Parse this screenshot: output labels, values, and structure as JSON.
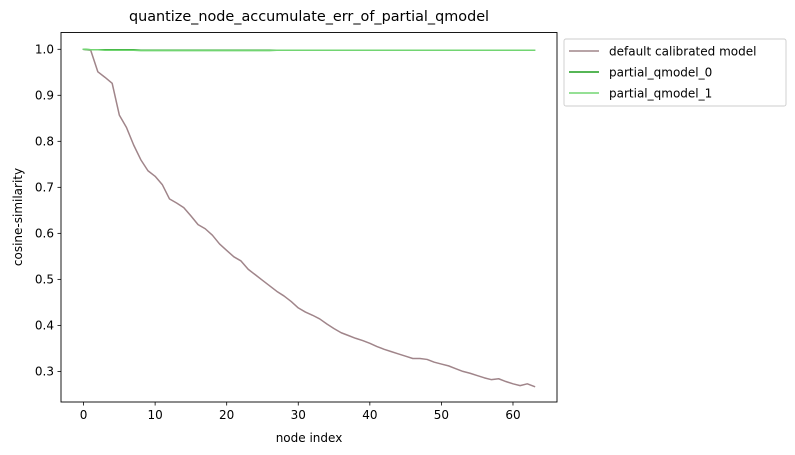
{
  "chart_data": {
    "type": "line",
    "title": "quantize_node_accumulate_err_of_partial_qmodel",
    "xlabel": "node index",
    "ylabel": "cosine-similarity",
    "xlim": [
      -3.15,
      66.15
    ],
    "ylim": [
      0.2335,
      1.0365
    ],
    "xticks": [
      0,
      10,
      20,
      30,
      40,
      50,
      60
    ],
    "xtick_labels": [
      "0",
      "10",
      "20",
      "30",
      "40",
      "50",
      "60"
    ],
    "yticks": [
      0.3,
      0.4,
      0.5,
      0.6,
      0.7,
      0.8,
      0.9,
      1.0
    ],
    "ytick_labels": [
      "0.3",
      "0.4",
      "0.5",
      "0.6",
      "0.7",
      "0.8",
      "0.9",
      "1.0"
    ],
    "grid": false,
    "legend_position": "outside upper right",
    "x": [
      0,
      1,
      2,
      3,
      4,
      5,
      6,
      7,
      8,
      9,
      10,
      11,
      12,
      13,
      14,
      15,
      16,
      17,
      18,
      19,
      20,
      21,
      22,
      23,
      24,
      25,
      26,
      27,
      28,
      29,
      30,
      31,
      32,
      33,
      34,
      35,
      36,
      37,
      38,
      39,
      40,
      41,
      42,
      43,
      44,
      45,
      46,
      47,
      48,
      49,
      50,
      51,
      52,
      53,
      54,
      55,
      56,
      57,
      58,
      59,
      60,
      61,
      62,
      63
    ],
    "series": [
      {
        "name": "default calibrated model",
        "color": "#a0858a",
        "values": [
          1.0,
          0.998,
          0.951,
          0.939,
          0.926,
          0.857,
          0.83,
          0.792,
          0.76,
          0.736,
          0.724,
          0.706,
          0.675,
          0.666,
          0.656,
          0.638,
          0.619,
          0.61,
          0.596,
          0.577,
          0.563,
          0.549,
          0.54,
          0.522,
          0.51,
          0.498,
          0.486,
          0.474,
          0.464,
          0.452,
          0.438,
          0.429,
          0.422,
          0.414,
          0.403,
          0.393,
          0.384,
          0.378,
          0.372,
          0.367,
          0.361,
          0.354,
          0.348,
          0.343,
          0.338,
          0.333,
          0.328,
          0.328,
          0.326,
          0.32,
          0.316,
          0.312,
          0.306,
          0.3,
          0.296,
          0.291,
          0.286,
          0.282,
          0.284,
          0.278,
          0.273,
          0.269,
          0.273,
          0.267
        ]
      },
      {
        "name": "partial_qmodel_0",
        "color": "#1f9e1f",
        "values": [
          1.0,
          0.999,
          0.999,
          0.999,
          0.999,
          0.999,
          0.999,
          0.999,
          0.998,
          0.998,
          0.998,
          0.998,
          0.998,
          0.998,
          0.998,
          0.998,
          0.998,
          0.998,
          0.998,
          0.998,
          0.998,
          0.998,
          0.998,
          0.998,
          0.998,
          0.998,
          0.998,
          0.998,
          0.998,
          0.998,
          0.998,
          0.998,
          0.998,
          0.998,
          0.998,
          0.998,
          0.998,
          0.998,
          0.998,
          0.998,
          0.998,
          0.998,
          0.998,
          0.998,
          0.998,
          0.998,
          0.998,
          0.998,
          0.998,
          0.998,
          0.998,
          0.998,
          0.998,
          0.998,
          0.998,
          0.998,
          0.998,
          0.998,
          0.998,
          0.998,
          0.998,
          0.998,
          0.998,
          0.998
        ]
      },
      {
        "name": "partial_qmodel_1",
        "color": "#72d572",
        "values": [
          1.0,
          0.999,
          0.999,
          0.998,
          0.998,
          0.998,
          0.998,
          0.998,
          0.997,
          0.997,
          0.997,
          0.997,
          0.997,
          0.997,
          0.997,
          0.997,
          0.997,
          0.997,
          0.997,
          0.997,
          0.997,
          0.997,
          0.997,
          0.997,
          0.997,
          0.997,
          0.997,
          0.998,
          0.998,
          0.998,
          0.998,
          0.998,
          0.998,
          0.998,
          0.998,
          0.998,
          0.998,
          0.998,
          0.998,
          0.998,
          0.998,
          0.998,
          0.998,
          0.998,
          0.998,
          0.998,
          0.998,
          0.998,
          0.998,
          0.998,
          0.998,
          0.998,
          0.998,
          0.998,
          0.998,
          0.998,
          0.998,
          0.998,
          0.998,
          0.998,
          0.998,
          0.998,
          0.998,
          0.998
        ]
      }
    ]
  }
}
